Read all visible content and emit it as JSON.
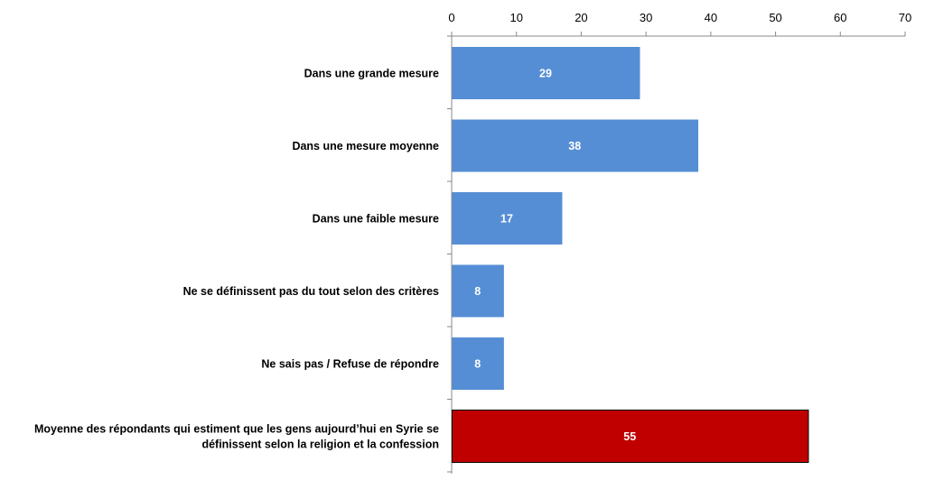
{
  "chart_data": {
    "type": "bar",
    "orientation": "horizontal",
    "categories": [
      [
        "Dans une grande mesure"
      ],
      [
        "Dans une mesure moyenne"
      ],
      [
        "Dans une faible mesure"
      ],
      [
        "Ne se définissent pas du tout selon des critères"
      ],
      [
        "Ne sais pas / Refuse de répondre"
      ],
      [
        "Moyenne des répondants qui estiment que les gens aujourd’hui en Syrie se",
        "définissent selon la religion et la confession"
      ]
    ],
    "values": [
      29,
      38,
      17,
      8,
      8,
      55
    ],
    "data_labels": [
      "29",
      "38",
      "17",
      "8",
      "8",
      "55"
    ],
    "xlim": [
      0,
      70
    ],
    "xticks": [
      0,
      10,
      20,
      30,
      40,
      50,
      60,
      70
    ],
    "xaxis_position": "top",
    "title": "",
    "xlabel": "",
    "ylabel": "",
    "grid": false,
    "legend": "none",
    "colors": {
      "default_bar": "#558ED5",
      "highlight_bar": "#C00000",
      "highlight_bar_border": "#000000",
      "axis": "#888888"
    },
    "highlight_index": 5
  }
}
